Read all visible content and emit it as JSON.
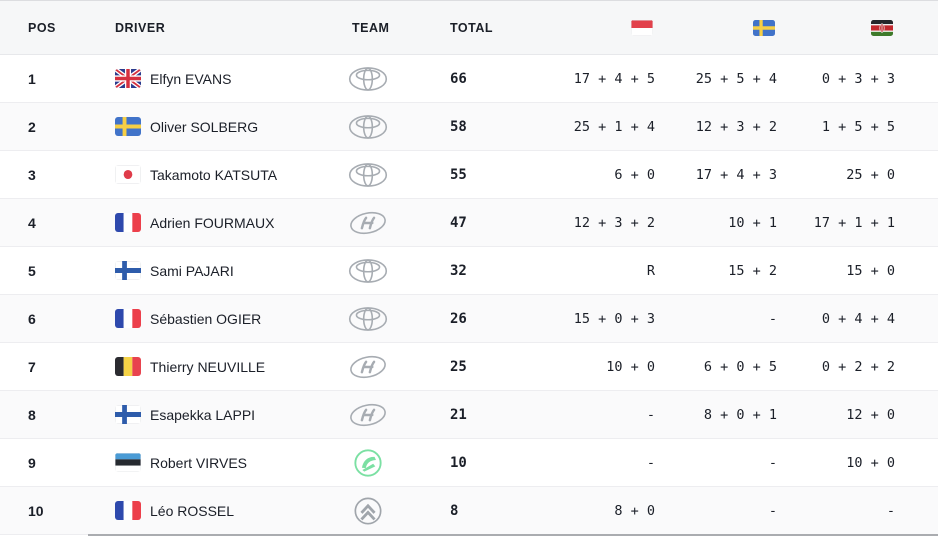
{
  "header": {
    "pos": "POS",
    "driver": "DRIVER",
    "team": "TEAM",
    "total": "TOTAL",
    "rallies": [
      {
        "icon": "monaco-flag",
        "flag": "mc"
      },
      {
        "icon": "sweden-flag",
        "flag": "se"
      },
      {
        "icon": "kenya-flag",
        "flag": "ke"
      }
    ]
  },
  "rows": [
    {
      "pos": "1",
      "name": "Elfyn EVANS",
      "nationality": "gb",
      "flag_name": "united-kingdom-flag",
      "team": "toyota",
      "team_icon": "toyota-logo",
      "total": "66",
      "rally1": "17 + 4 + 5",
      "rally2": "25 + 5 + 4",
      "rally3": "0 + 3 + 3"
    },
    {
      "pos": "2",
      "name": "Oliver SOLBERG",
      "nationality": "se",
      "flag_name": "sweden-flag",
      "team": "toyota",
      "team_icon": "toyota-logo",
      "total": "58",
      "rally1": "25 + 1 + 4",
      "rally2": "12 + 3 + 2",
      "rally3": "1 + 5 + 5"
    },
    {
      "pos": "3",
      "name": "Takamoto KATSUTA",
      "nationality": "jp",
      "flag_name": "japan-flag",
      "team": "toyota",
      "team_icon": "toyota-logo",
      "total": "55",
      "rally1": "6 + 0",
      "rally2": "17 + 4 + 3",
      "rally3": "25 + 0"
    },
    {
      "pos": "4",
      "name": "Adrien FOURMAUX",
      "nationality": "fr",
      "flag_name": "france-flag",
      "team": "hyundai",
      "team_icon": "hyundai-logo",
      "total": "47",
      "rally1": "12 + 3 + 2",
      "rally2": "10 + 1",
      "rally3": "17 + 1 + 1"
    },
    {
      "pos": "5",
      "name": "Sami PAJARI",
      "nationality": "fi",
      "flag_name": "finland-flag",
      "team": "toyota",
      "team_icon": "toyota-logo",
      "total": "32",
      "rally1": "R",
      "rally2": "15 + 2",
      "rally3": "15 + 0"
    },
    {
      "pos": "6",
      "name": "Sébastien OGIER",
      "nationality": "fr",
      "flag_name": "france-flag",
      "team": "toyota",
      "team_icon": "toyota-logo",
      "total": "26",
      "rally1": "15 + 0 + 3",
      "rally2": "-",
      "rally3": "0 + 4 + 4"
    },
    {
      "pos": "7",
      "name": "Thierry NEUVILLE",
      "nationality": "be",
      "flag_name": "belgium-flag",
      "team": "hyundai",
      "team_icon": "hyundai-logo",
      "total": "25",
      "rally1": "10 + 0",
      "rally2": "6 + 0 + 5",
      "rally3": "0 + 2 + 2"
    },
    {
      "pos": "8",
      "name": "Esapekka LAPPI",
      "nationality": "fi",
      "flag_name": "finland-flag",
      "team": "hyundai",
      "team_icon": "hyundai-logo",
      "total": "21",
      "rally1": "-",
      "rally2": "8 + 0 + 1",
      "rally3": "12 + 0"
    },
    {
      "pos": "9",
      "name": "Robert VIRVES",
      "nationality": "ee",
      "flag_name": "estonia-flag",
      "team": "skoda",
      "team_icon": "skoda-logo",
      "total": "10",
      "rally1": "-",
      "rally2": "-",
      "rally3": "10 + 0"
    },
    {
      "pos": "10",
      "name": "Léo ROSSEL",
      "nationality": "fr",
      "flag_name": "france-flag",
      "team": "citroen",
      "team_icon": "citroen-logo",
      "total": "8",
      "rally1": "8 + 0",
      "rally2": "-",
      "rally3": "-"
    }
  ],
  "colors": {
    "text": "#1b1f28",
    "header_bg": "#f6f7f8",
    "row_alt_bg": "#fafafb",
    "row_border": "#ededf0",
    "logo_gray": "#a7acb2",
    "skoda_green": "#7be0a3",
    "bottom_divider": "#aaacb0"
  }
}
